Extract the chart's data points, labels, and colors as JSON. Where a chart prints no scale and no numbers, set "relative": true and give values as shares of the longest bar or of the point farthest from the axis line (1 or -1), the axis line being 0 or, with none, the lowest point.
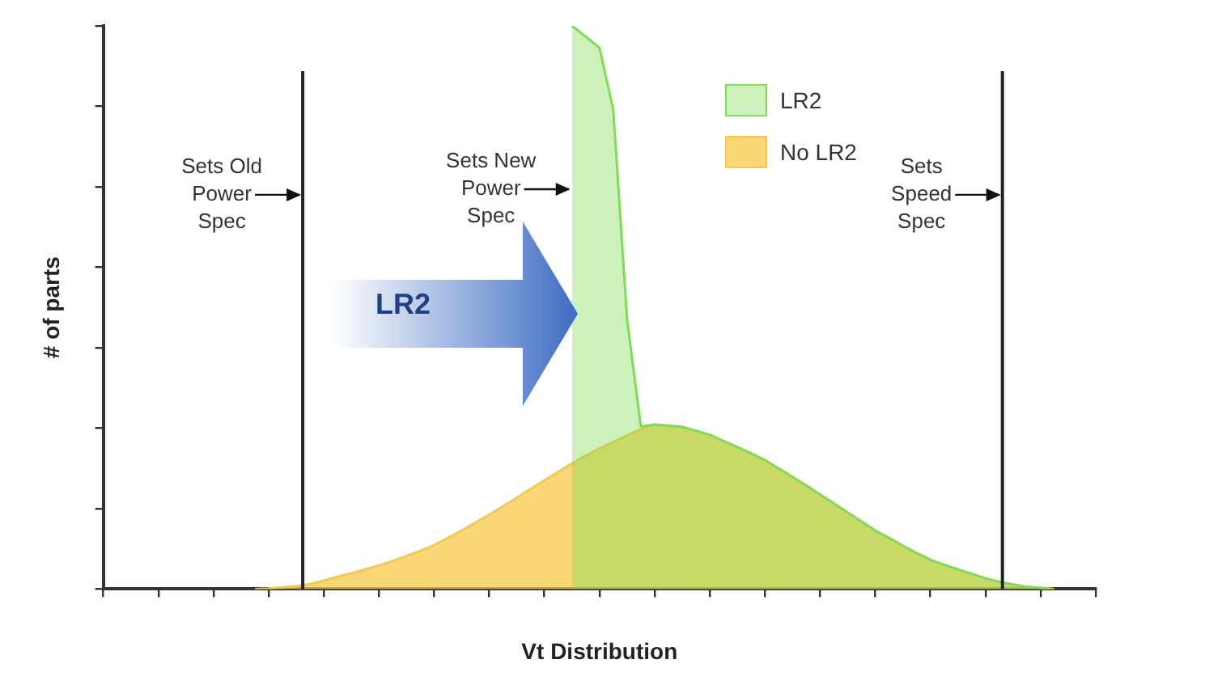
{
  "chart_data": {
    "type": "area",
    "relative": true,
    "xlabel": "Vt Distribution",
    "ylabel": "# of parts",
    "categories": [
      null,
      null,
      null,
      null,
      null,
      null,
      null,
      null,
      null,
      null,
      null,
      null,
      null,
      null,
      null,
      null,
      null,
      null,
      null,
      null,
      null,
      null,
      null,
      null,
      null,
      null,
      null,
      null,
      null,
      null,
      null,
      null,
      null,
      null,
      null,
      null,
      null,
      null,
      null,
      null,
      null,
      null,
      null,
      null,
      null,
      null,
      null,
      null,
      null,
      null,
      null,
      null,
      null,
      null,
      null,
      null,
      null,
      null,
      null,
      null,
      null,
      null,
      null,
      null,
      null,
      null,
      null,
      null,
      null,
      null,
      null,
      null,
      null
    ],
    "tick_labels": false,
    "grid": false,
    "legend": "top right",
    "marker": "none",
    "series": [
      {
        "name": "LR2",
        "color": "#7fdc55",
        "values": [
          null,
          null,
          null,
          null,
          null,
          null,
          null,
          null,
          null,
          null,
          null,
          null,
          null,
          null,
          null,
          null,
          null,
          null,
          null,
          null,
          null,
          null,
          null,
          null,
          null,
          null,
          null,
          null,
          null,
          null,
          null,
          null,
          null,
          null,
          1.0,
          0.981,
          0.961,
          0.851,
          0.479,
          0.289,
          0.292,
          0.29,
          0.288,
          0.281,
          0.274,
          0.263,
          0.252,
          0.241,
          0.229,
          0.214,
          0.199,
          0.184,
          0.168,
          0.152,
          0.136,
          0.12,
          0.104,
          0.091,
          0.077,
          0.064,
          0.052,
          0.043,
          0.035,
          0.027,
          0.019,
          0.013,
          0.008,
          0.004,
          0.002,
          0,
          null,
          null,
          null
        ]
      },
      {
        "name": "No LR2",
        "color": "#f7c948",
        "values": [
          null,
          null,
          null,
          null,
          null,
          null,
          null,
          null,
          null,
          null,
          null,
          0,
          0.001,
          0.003,
          0.005,
          0.009,
          0.015,
          0.022,
          0.028,
          0.035,
          0.042,
          0.05,
          0.059,
          0.068,
          0.078,
          0.091,
          0.104,
          0.118,
          0.132,
          0.147,
          0.162,
          0.178,
          0.193,
          0.208,
          0.223,
          0.237,
          0.25,
          0.261,
          0.273,
          0.284,
          0.292,
          0.29,
          0.288,
          0.281,
          0.274,
          0.263,
          0.252,
          0.241,
          0.229,
          0.214,
          0.199,
          0.184,
          0.168,
          0.152,
          0.136,
          0.12,
          0.104,
          0.091,
          0.077,
          0.064,
          0.052,
          0.043,
          0.035,
          0.027,
          0.019,
          0.013,
          0.008,
          0.004,
          0.002,
          0,
          null,
          null,
          null
        ]
      }
    ],
    "annotations": [
      "Sets Old Power Spec",
      "Sets New Power Spec",
      "Sets Speed Spec",
      "LR2"
    ]
  }
}
